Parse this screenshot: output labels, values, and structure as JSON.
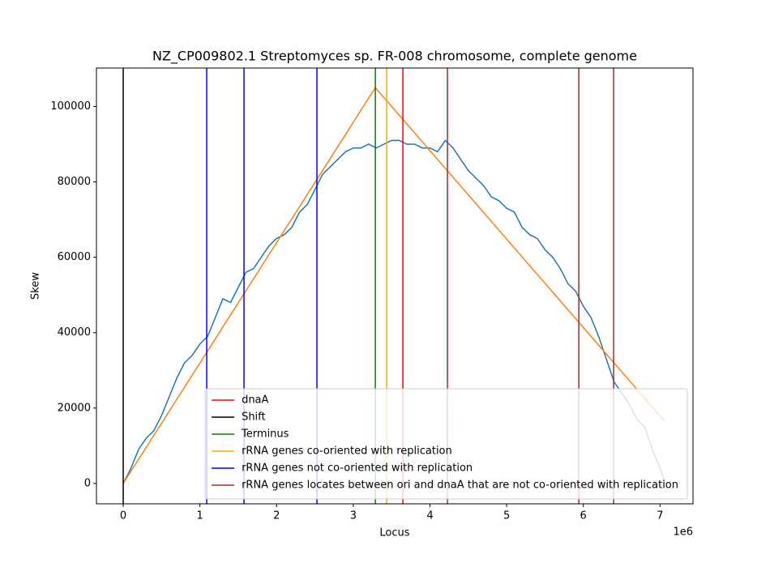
{
  "chart_data": {
    "type": "line",
    "title": "NZ_CP009802.1 Streptomyces sp. FR-008 chromosome, complete genome",
    "x_label": "Locus",
    "y_label": "Skew",
    "x_offset_label": "1e6",
    "xlim": [
      -349000,
      7430000
    ],
    "ylim": [
      -5400,
      110200
    ],
    "xticks": [
      {
        "value": 0,
        "label": "0"
      },
      {
        "value": 1000000,
        "label": "1"
      },
      {
        "value": 2000000,
        "label": "2"
      },
      {
        "value": 3000000,
        "label": "3"
      },
      {
        "value": 4000000,
        "label": "4"
      },
      {
        "value": 5000000,
        "label": "5"
      },
      {
        "value": 6000000,
        "label": "6"
      },
      {
        "value": 7000000,
        "label": "7"
      }
    ],
    "yticks": [
      0,
      20000,
      40000,
      60000,
      80000,
      100000
    ],
    "series": [
      {
        "color": "#1f77b4",
        "x": [
          0,
          100000,
          200000,
          300000,
          400000,
          500000,
          600000,
          700000,
          800000,
          900000,
          1000000,
          1100000,
          1200000,
          1300000,
          1400000,
          1500000,
          1600000,
          1700000,
          1800000,
          1900000,
          2000000,
          2100000,
          2200000,
          2300000,
          2400000,
          2500000,
          2600000,
          2700000,
          2800000,
          2900000,
          3000000,
          3100000,
          3200000,
          3300000,
          3400000,
          3500000,
          3600000,
          3700000,
          3800000,
          3900000,
          4000000,
          4100000,
          4200000,
          4300000,
          4400000,
          4500000,
          4600000,
          4700000,
          4800000,
          4900000,
          5000000,
          5100000,
          5200000,
          5300000,
          5400000,
          5500000,
          5600000,
          5700000,
          5800000,
          5900000,
          6000000,
          6100000,
          6200000,
          6300000,
          6400000,
          6500000,
          6600000,
          6700000,
          6800000,
          6900000,
          7000000,
          7070000
        ],
        "values": [
          0,
          4000,
          9000,
          12000,
          14000,
          18000,
          23000,
          28000,
          32000,
          34000,
          37000,
          39000,
          44000,
          49000,
          48000,
          52000,
          56000,
          57000,
          60000,
          63000,
          65000,
          66000,
          68000,
          72000,
          74000,
          78000,
          82000,
          84000,
          86000,
          88000,
          89000,
          89000,
          90000,
          89000,
          90000,
          91000,
          91000,
          90000,
          90000,
          89000,
          89000,
          88000,
          91000,
          89000,
          86000,
          83000,
          81000,
          79000,
          76000,
          75000,
          73000,
          72000,
          68000,
          66000,
          65000,
          62000,
          60000,
          57000,
          53000,
          51000,
          47000,
          44000,
          39000,
          33000,
          27000,
          24000,
          21000,
          17000,
          15000,
          9000,
          4000,
          0
        ]
      },
      {
        "color": "#ff7f0e",
        "x": [
          0,
          3288000,
          7060000
        ],
        "values": [
          0,
          105000,
          16500
        ]
      }
    ],
    "vlines": [
      {
        "name": "dnaA",
        "color": "#ff0000",
        "x": [
          3647000
        ]
      },
      {
        "name": "Shift",
        "color": "#000000",
        "x": [
          0
        ]
      },
      {
        "name": "Terminus",
        "color": "#008000",
        "x": [
          3288000
        ]
      },
      {
        "name": "rRNA genes co-oriented with replication",
        "color": "#ffa500",
        "x": [
          3436000
        ]
      },
      {
        "name": "rRNA genes not co-oriented with replication",
        "color": "#0000ff",
        "x": [
          1089000,
          1575000,
          2526000
        ]
      },
      {
        "name": "rRNA genes locates between ori and dnaA that are not co-oriented with replication",
        "color": "#a52a2a",
        "x": [
          4228000,
          5941000,
          6395000
        ]
      }
    ],
    "legend": "lower right"
  }
}
